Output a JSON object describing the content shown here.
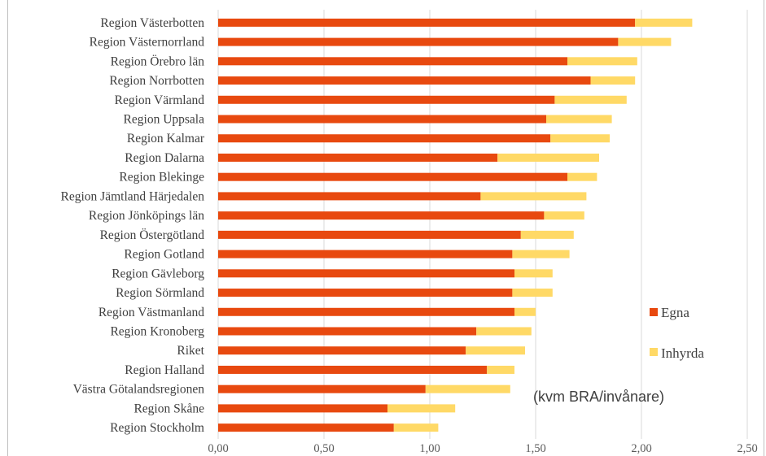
{
  "chart_data": {
    "type": "bar",
    "orientation": "horizontal",
    "stacked": true,
    "categories": [
      "Region Västerbotten",
      "Region Västernorrland",
      "Region Örebro län",
      "Region Norrbotten",
      "Region Värmland",
      "Region Uppsala",
      "Region Kalmar",
      "Region Dalarna",
      "Region Blekinge",
      "Region Jämtland Härjedalen",
      "Region Jönköpings län",
      "Region Östergötland",
      "Region Gotland",
      "Region Gävleborg",
      "Region Sörmland",
      "Region Västmanland",
      "Region Kronoberg",
      "Riket",
      "Region Halland",
      "Västra Götalandsregionen",
      "Region Skåne",
      "Region Stockholm"
    ],
    "series": [
      {
        "name": "Egna",
        "color": "#E8490F",
        "values": [
          1.97,
          1.89,
          1.65,
          1.76,
          1.59,
          1.55,
          1.57,
          1.32,
          1.65,
          1.24,
          1.54,
          1.43,
          1.39,
          1.4,
          1.39,
          1.4,
          1.22,
          1.17,
          1.27,
          0.98,
          0.8,
          0.83
        ]
      },
      {
        "name": "Inhyrda",
        "color": "#FFD966",
        "values": [
          0.27,
          0.25,
          0.33,
          0.21,
          0.34,
          0.31,
          0.28,
          0.48,
          0.14,
          0.5,
          0.19,
          0.25,
          0.27,
          0.18,
          0.19,
          0.1,
          0.26,
          0.28,
          0.13,
          0.4,
          0.32,
          0.21
        ]
      }
    ],
    "x_ticks": [
      "0,00",
      "0,50",
      "1,00",
      "1,50",
      "2,00",
      "2,50"
    ],
    "xlim": [
      0,
      2.5
    ],
    "grid": true,
    "legend_position": "right",
    "annotation": "(kvm BRA/invånare)"
  }
}
